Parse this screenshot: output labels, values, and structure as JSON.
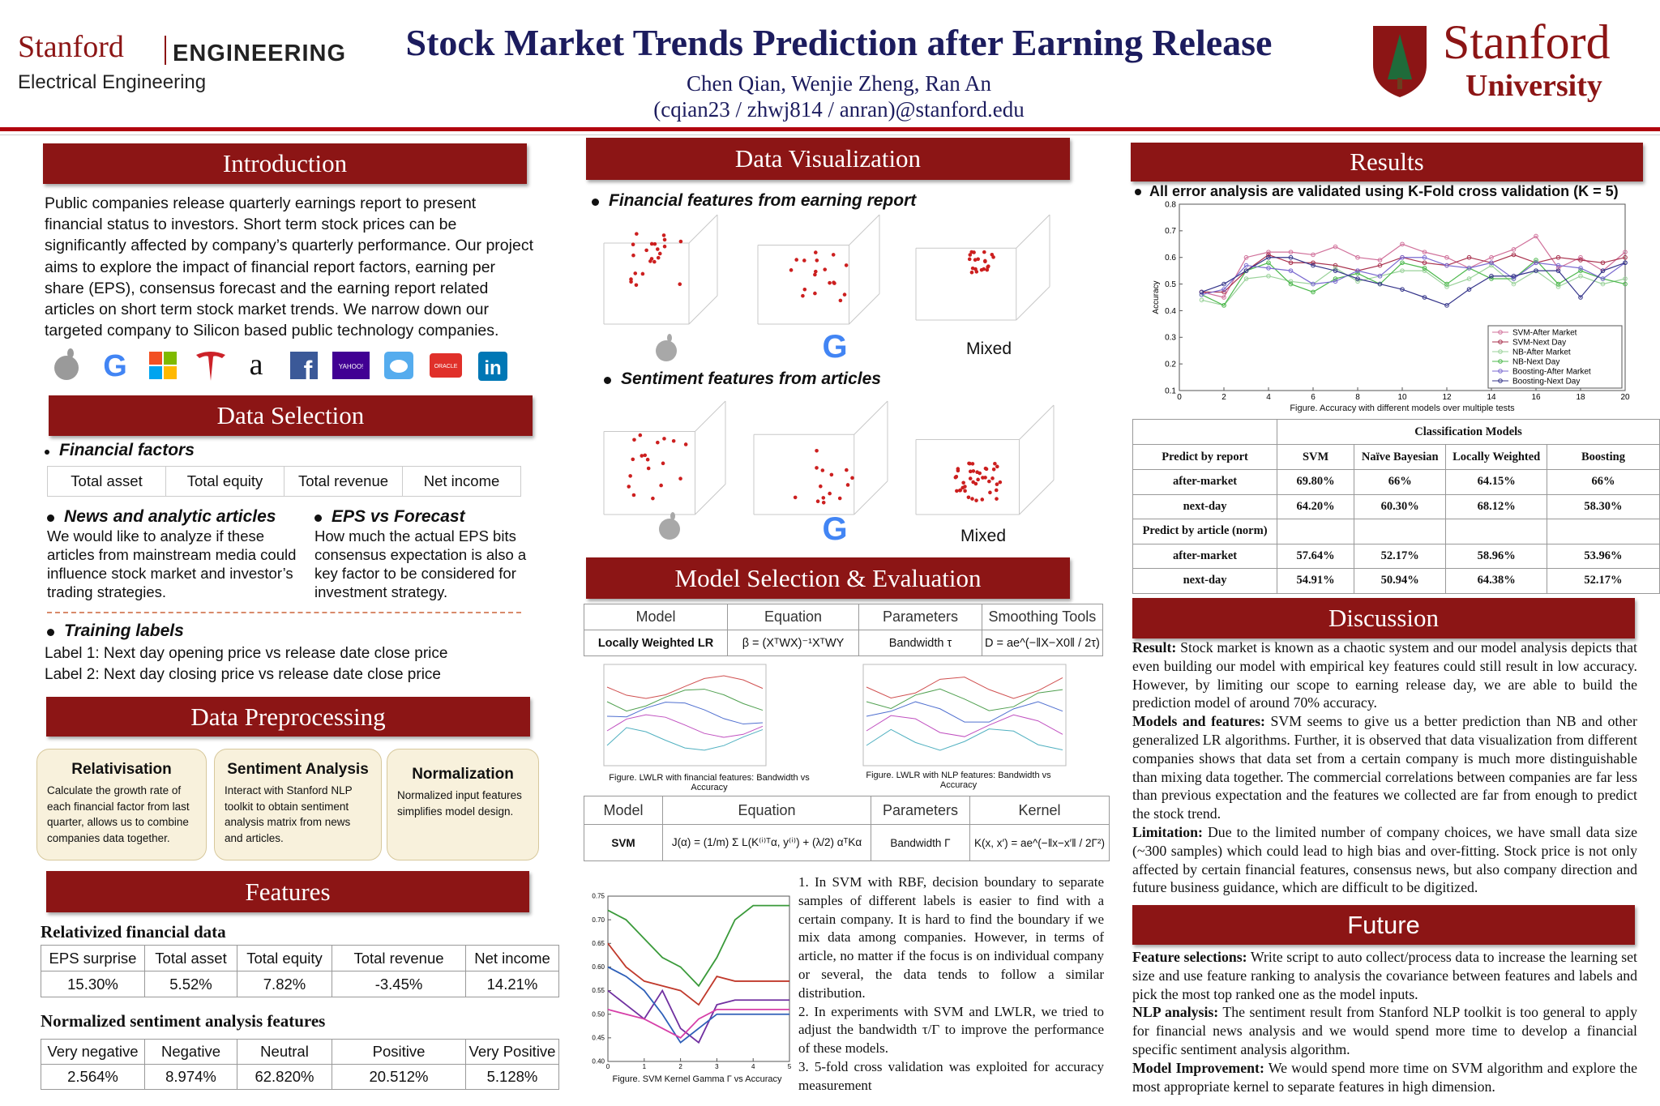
{
  "header": {
    "left_logo_name": "Stanford",
    "left_logo_unit": "ENGINEERING",
    "left_logo_dept": "Electrical Engineering",
    "title": "Stock Market Trends Prediction after Earning Release",
    "authors": "Chen Qian, Wenjie Zheng, Ran An",
    "emails": "(cqian23 / zhwj814 / anran)@stanford.edu",
    "right_logo_name": "Stanford",
    "right_logo_sub": "University"
  },
  "introduction": {
    "heading": "Introduction",
    "text": "Public companies release quarterly earnings report to present financial status to investors. Short term stock prices can be significantly affected by company’s quarterly performance. Our project aims to explore the impact of financial report factors, earning per share (EPS), consensus forecast and the earning report related articles on short term stock market trends. We narrow down our targeted company to Silicon based public technology companies.",
    "logo_texts": [
      "G",
      "a",
      "f",
      "YAHOO!",
      "ORACLE",
      "in"
    ]
  },
  "data_selection": {
    "heading": "Data Selection",
    "financial_factors": {
      "title": "Financial factors",
      "items": [
        "Total asset",
        "Total equity",
        "Total revenue",
        "Net income"
      ]
    },
    "news": {
      "title": "News and analytic articles",
      "text": "We would like to analyze if these articles from mainstream media could influence stock market and investor’s trading strategies."
    },
    "eps": {
      "title": "EPS vs Forecast",
      "text": "How much the actual EPS bits consensus expectation is also a key factor to be considered for investment strategy."
    },
    "training": {
      "title": "Training labels",
      "labels": [
        "Label 1: Next day opening price vs release date close price",
        "Label 2: Next day closing price vs release date close price"
      ]
    }
  },
  "data_preprocessing": {
    "heading": "Data Preprocessing",
    "boxes": [
      {
        "title": "Relativisation",
        "text": "Calculate the growth rate of each financial factor from last quarter, allows us to combine companies data together."
      },
      {
        "title": "Sentiment Analysis",
        "text": "Interact with Stanford NLP toolkit to obtain sentiment analysis matrix from news and articles."
      },
      {
        "title": "Normalization",
        "text": "Normalized input features simplifies model design."
      }
    ]
  },
  "features": {
    "heading": "Features",
    "financial": {
      "title": "Relativized financial data",
      "header": [
        "EPS surprise",
        "Total asset",
        "Total equity",
        "Total revenue",
        "Net income"
      ],
      "row": [
        "15.30%",
        "5.52%",
        "7.82%",
        "-3.45%",
        "14.21%"
      ]
    },
    "sentiment": {
      "title": "Normalized sentiment analysis features",
      "header": [
        "Very negative",
        "Negative",
        "Neutral",
        "Positive",
        "Very Positive"
      ],
      "row": [
        "2.564%",
        "8.974%",
        "62.820%",
        "20.512%",
        "5.128%"
      ]
    }
  },
  "data_visualization": {
    "heading": "Data Visualization",
    "financial_title": "Financial features from earning report",
    "financial_labels": [
      "G",
      "Mixed"
    ],
    "sentiment_title": "Sentiment features from articles",
    "sentiment_labels": [
      "G",
      "Mixed"
    ]
  },
  "model_selection": {
    "heading": "Model Selection & Evaluation",
    "lwlr_table": {
      "header": [
        "Model",
        "Equation",
        "Parameters",
        "Smoothing Tools"
      ],
      "row": [
        "Locally Weighted LR",
        "β = (XᵀWX)⁻¹XᵀWY",
        "Bandwidth τ",
        "D = ae^(−‖X−X0‖ / 2τ)"
      ]
    },
    "lwlr_financial_caption": "Figure. LWLR with financial features: Bandwidth vs Accuracy",
    "lwlr_nlp_caption": "Figure. LWLR with NLP features: Bandwidth vs Accuracy",
    "svm_table": {
      "header": [
        "Model",
        "Equation",
        "Parameters",
        "Kernel"
      ],
      "row": [
        "SVM",
        "J(α) = (1/m) Σ L(K⁽ⁱ⁾ᵀα, y⁽ⁱ⁾) + (λ/2) αᵀKα",
        "Bandwidth Γ",
        "K(x, x′) = ae^(−‖x−x′‖ / 2Γ²)"
      ]
    },
    "svm_chart": {
      "type": "line",
      "xlim": [
        0,
        5
      ],
      "ylim": [
        0.4,
        0.75
      ],
      "xticks": [
        0,
        1,
        2,
        3,
        4,
        5
      ],
      "yticks": [
        {
          "value": 0.4,
          "label": "0.40"
        },
        0.45,
        {
          "value": 0.5,
          "label": "0.50"
        },
        0.55,
        {
          "value": 0.6,
          "label": "0.60"
        },
        0.65,
        {
          "value": 0.7,
          "label": "0.70"
        },
        0.75
      ],
      "x": [
        0,
        0.5,
        1,
        1.5,
        2,
        2.5,
        3,
        3.5,
        4,
        4.5,
        5
      ],
      "series": [
        {
          "color": "#3a9a3a",
          "values": [
            0.72,
            0.7,
            0.66,
            0.62,
            0.6,
            0.56,
            0.62,
            0.7,
            0.73,
            0.73,
            0.73
          ]
        },
        {
          "color": "#c0392b",
          "values": [
            0.65,
            0.6,
            0.57,
            0.56,
            0.55,
            0.52,
            0.58,
            0.57,
            0.57,
            0.57,
            0.57
          ]
        },
        {
          "color": "#7030a0",
          "values": [
            0.55,
            0.52,
            0.49,
            0.55,
            0.47,
            0.44,
            0.52,
            0.53,
            0.53,
            0.53,
            0.53
          ]
        },
        {
          "color": "#2e5fb8",
          "values": [
            0.6,
            0.58,
            0.55,
            0.5,
            0.44,
            0.47,
            0.5,
            0.5,
            0.5,
            0.5,
            0.5
          ]
        },
        {
          "color": "#d63fa8",
          "values": [
            0.51,
            0.5,
            0.49,
            0.47,
            0.45,
            0.49,
            0.51,
            0.51,
            0.51,
            0.51,
            0.51
          ]
        }
      ],
      "caption": "Figure. SVM Kernel Gamma Γ vs Accuracy"
    },
    "notes": [
      "1. In SVM with RBF, decision boundary to separate samples of different labels is easier to find with a certain company. It is hard to find the boundary if we mix data among companies. However, in terms of article, no matter if the focus is on individual company or several, the data tends to follow a similar distribution.",
      "2. In experiments with SVM and LWLR, we tried to adjust the bandwidth τ/Γ to improve the performance of these models.",
      "3. 5-fold cross validation was exploited for accuracy measurement"
    ]
  },
  "results": {
    "heading": "Results",
    "bullet": "All error analysis are validated using K-Fold cross validation  (K = 5)",
    "chart": {
      "type": "line",
      "ylabel": "Accuracy",
      "xlim": [
        0,
        20
      ],
      "ylim": [
        0.1,
        0.8
      ],
      "xticks": [
        0,
        2,
        4,
        6,
        8,
        10,
        12,
        14,
        16,
        18,
        20
      ],
      "yticks": [
        0.1,
        0.2,
        0.3,
        0.4,
        0.5,
        0.6,
        0.7,
        0.8
      ],
      "x": [
        1,
        2,
        3,
        4,
        5,
        6,
        7,
        8,
        9,
        10,
        11,
        12,
        13,
        14,
        15,
        16,
        17,
        18,
        19,
        20
      ],
      "series": [
        {
          "name": "SVM-After Market",
          "color": "#d0709a",
          "values": [
            0.47,
            0.45,
            0.6,
            0.62,
            0.62,
            0.61,
            0.64,
            0.6,
            0.59,
            0.65,
            0.62,
            0.6,
            0.56,
            0.6,
            0.63,
            0.68,
            0.56,
            0.6,
            0.55,
            0.62
          ]
        },
        {
          "name": "SVM-Next Day",
          "color": "#a8304c",
          "values": [
            0.47,
            0.47,
            0.55,
            0.61,
            0.58,
            0.58,
            0.57,
            0.55,
            0.57,
            0.6,
            0.58,
            0.57,
            0.6,
            0.58,
            0.61,
            0.58,
            0.6,
            0.59,
            0.58,
            0.6
          ]
        },
        {
          "name": "NB-After Market",
          "color": "#9ad29a",
          "values": [
            0.44,
            0.42,
            0.52,
            0.53,
            0.51,
            0.5,
            0.56,
            0.51,
            0.53,
            0.55,
            0.55,
            0.49,
            0.52,
            0.57,
            0.5,
            0.55,
            0.49,
            0.53,
            0.5,
            0.52
          ]
        },
        {
          "name": "NB-Next Day",
          "color": "#4cb84c",
          "values": [
            0.46,
            0.42,
            0.55,
            0.58,
            0.5,
            0.47,
            0.52,
            0.54,
            0.5,
            0.58,
            0.56,
            0.5,
            0.56,
            0.52,
            0.52,
            0.59,
            0.5,
            0.55,
            0.52,
            0.5
          ]
        },
        {
          "name": "Boosting-After Market",
          "color": "#7a6ad0",
          "values": [
            0.46,
            0.48,
            0.57,
            0.56,
            0.55,
            0.5,
            0.51,
            0.55,
            0.53,
            0.6,
            0.6,
            0.57,
            0.56,
            0.58,
            0.52,
            0.58,
            0.57,
            0.56,
            0.52,
            0.58
          ]
        },
        {
          "name": "Boosting-Next Day",
          "color": "#34348a",
          "values": [
            0.47,
            0.5,
            0.55,
            0.6,
            0.6,
            0.57,
            0.55,
            0.52,
            0.5,
            0.48,
            0.45,
            0.42,
            0.48,
            0.53,
            0.53,
            0.55,
            0.55,
            0.45,
            0.55,
            0.58
          ]
        }
      ],
      "legend": "lower right",
      "caption": "Figure. Accuracy with different models over multiple tests"
    },
    "table": {
      "title": "Classification Models",
      "header": [
        "Predict by report",
        "SVM",
        "Naïve Bayesian",
        "Locally Weighted",
        "Boosting"
      ],
      "rows": [
        [
          "after-market",
          "69.80%",
          "66%",
          "64.15%",
          "66%"
        ],
        [
          "next-day",
          "64.20%",
          "60.30%",
          "68.12%",
          "58.30%"
        ],
        [
          "Predict by article (norm)"
        ],
        [
          "after-market",
          "57.64%",
          "52.17%",
          "58.96%",
          "53.96%"
        ],
        [
          "next-day",
          "54.91%",
          "50.94%",
          "64.38%",
          "52.17%"
        ]
      ]
    }
  },
  "discussion": {
    "heading": "Discussion",
    "paragraphs": [
      {
        "label": "Result:",
        "text": "Stock market is known as a chaotic system and our model analysis depicts that even building our model with empirical key features could still result in low accuracy. However, by limiting our scope to earning release day, we are able to build the prediction model of around 70% accuracy."
      },
      {
        "label": "Models and features:",
        "text": "SVM seems to give us a better prediction than NB and other generalized LR algorithms. Further, it is observed that data visualization from different companies shows that data set from a certain company is much more distinguishable than mixing data together. The commercial correlations between companies are far less than previous expectation and the features we collected are far from enough to predict the stock trend."
      },
      {
        "label": "Limitation:",
        "text": "Due to the limited number of company choices, we have small data size (~300 samples) which could lead to high bias and over-fitting. Stock price is not only affected by certain financial features, consensus news, but also company direction and future business guidance, which are difficult to be digitized."
      }
    ]
  },
  "future": {
    "heading": "Future",
    "paragraphs": [
      {
        "label": "Feature selections:",
        "text": "Write script to auto collect/process data to increase the learning set size and use feature ranking to analysis the covariance between features and labels and pick the most top ranked one as the model inputs."
      },
      {
        "label": "NLP analysis:",
        "text": "The sentiment result from Stanford NLP toolkit is too general to apply for financial news analysis and we would spend more time to develop a financial specific sentiment analysis algorithm."
      },
      {
        "label": "Model Improvement:",
        "text": "We would spend more time on SVM algorithm and explore the most appropriate kernel to separate features in high dimension."
      }
    ]
  }
}
